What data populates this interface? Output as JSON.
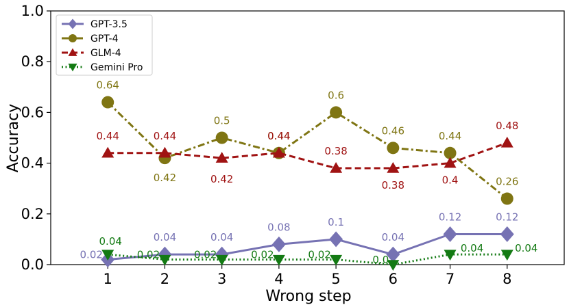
{
  "chart_data": {
    "type": "line",
    "title": "",
    "xlabel": "Wrong step",
    "ylabel": "Accuracy",
    "x": [
      1,
      2,
      3,
      4,
      5,
      6,
      7,
      8
    ],
    "xlim": [
      0.0,
      9.0
    ],
    "ylim": [
      0.0,
      1.0
    ],
    "yticks": [
      "0.0",
      "0.2",
      "0.4",
      "0.6",
      "0.8",
      "1.0"
    ],
    "legend_position": "top-left",
    "series": [
      {
        "name": "GPT-3.5",
        "values": [
          0.02,
          0.04,
          0.04,
          0.08,
          0.1,
          0.04,
          0.12,
          0.12
        ],
        "labels": [
          "0.02",
          "0.04",
          "0.04",
          "0.08",
          "0.1",
          "0.04",
          "0.12",
          "0.12"
        ],
        "color": "#7672b3",
        "marker": "diamond",
        "line_style": "solid"
      },
      {
        "name": "GPT-4",
        "values": [
          0.64,
          0.42,
          0.5,
          0.44,
          0.6,
          0.46,
          0.44,
          0.26
        ],
        "labels": [
          "0.64",
          "0.42",
          "0.5",
          "0.44",
          "0.6",
          "0.46",
          "0.44",
          "0.26"
        ],
        "color": "#7f7513",
        "marker": "circle",
        "line_style": "dashdot"
      },
      {
        "name": "GLM-4",
        "values": [
          0.44,
          0.44,
          0.42,
          0.44,
          0.38,
          0.38,
          0.4,
          0.48
        ],
        "labels": [
          "0.44",
          "0.44",
          "0.42",
          "0.44",
          "0.38",
          "0.38",
          "0.4",
          "0.48"
        ],
        "color": "#a01313",
        "marker": "triangle-up",
        "line_style": "dashed"
      },
      {
        "name": "Gemini Pro",
        "values": [
          0.04,
          0.02,
          0.02,
          0.02,
          0.02,
          0.0,
          0.04,
          0.04
        ],
        "labels": [
          "0.04",
          "0.02",
          "0.02",
          "0.02",
          "0.02",
          "0.0",
          "0.04",
          "0.04"
        ],
        "color": "#137a13",
        "marker": "triangle-down",
        "line_style": "dotted"
      }
    ]
  }
}
